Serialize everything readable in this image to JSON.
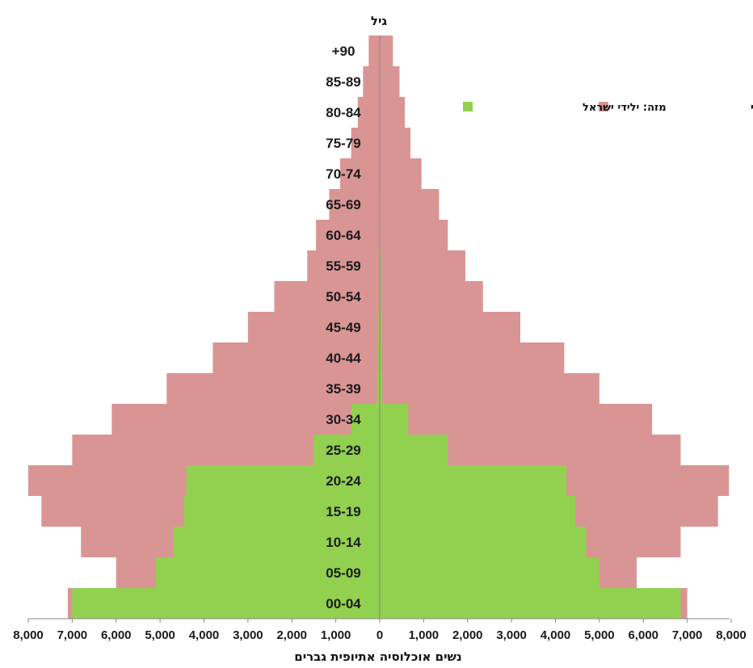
{
  "chart_data": {
    "type": "bar",
    "orientation": "horizontal-pyramid",
    "title": "גיל",
    "xlabel": "נשים  אוכלוסיה אתיופית  גברים",
    "xlim": [
      -8000,
      8000
    ],
    "x_ticks": [
      -8000,
      -7000,
      -6000,
      -5000,
      -4000,
      -3000,
      -2000,
      -1000,
      0,
      1000,
      2000,
      3000,
      4000,
      5000,
      6000,
      7000,
      8000
    ],
    "x_tick_labels": [
      "8,000",
      "7,000",
      "6,000",
      "5,000",
      "4,000",
      "3,000",
      "2,000",
      "1,000",
      "0",
      "1,000",
      "2,000",
      "3,000",
      "4,000",
      "5,000",
      "6,000",
      "7,000",
      "8,000"
    ],
    "categories": [
      "00-04",
      "05-09",
      "10-14",
      "15-19",
      "20-24",
      "25-29",
      "30-34",
      "35-39",
      "40-44",
      "45-49",
      "50-54",
      "55-59",
      "60-64",
      "65-69",
      "70-74",
      "75-79",
      "80-84",
      "85-89",
      "+90"
    ],
    "series": [
      {
        "name": "האוכלוסיה ממוצא אתיופי",
        "color": "#d99594",
        "left": [
          7100,
          6000,
          6800,
          7700,
          8000,
          7000,
          6100,
          4850,
          3800,
          3000,
          2400,
          1650,
          1450,
          1150,
          900,
          650,
          500,
          380,
          250
        ],
        "right": [
          7000,
          5850,
          6850,
          7700,
          7950,
          6850,
          6200,
          5000,
          4200,
          3200,
          2350,
          1950,
          1550,
          1350,
          950,
          700,
          570,
          450,
          300
        ]
      },
      {
        "name": "מזה: ילידי ישראל",
        "color": "#92d050",
        "left": [
          7000,
          5100,
          4700,
          4450,
          4400,
          1500,
          650,
          60,
          40,
          30,
          20,
          20,
          10,
          10,
          5,
          5,
          5,
          0,
          0
        ],
        "right": [
          6850,
          5000,
          4700,
          4450,
          4250,
          1550,
          650,
          60,
          40,
          30,
          20,
          20,
          10,
          10,
          5,
          5,
          5,
          0,
          0
        ]
      }
    ],
    "legend": [
      {
        "label": "האוכלוסיה ממוצא אתיופי",
        "color": "#d99594"
      },
      {
        "label": "מזה: ילידי ישראל",
        "color": "#92d050"
      }
    ],
    "legend_placement": "top-right",
    "grid": false
  }
}
